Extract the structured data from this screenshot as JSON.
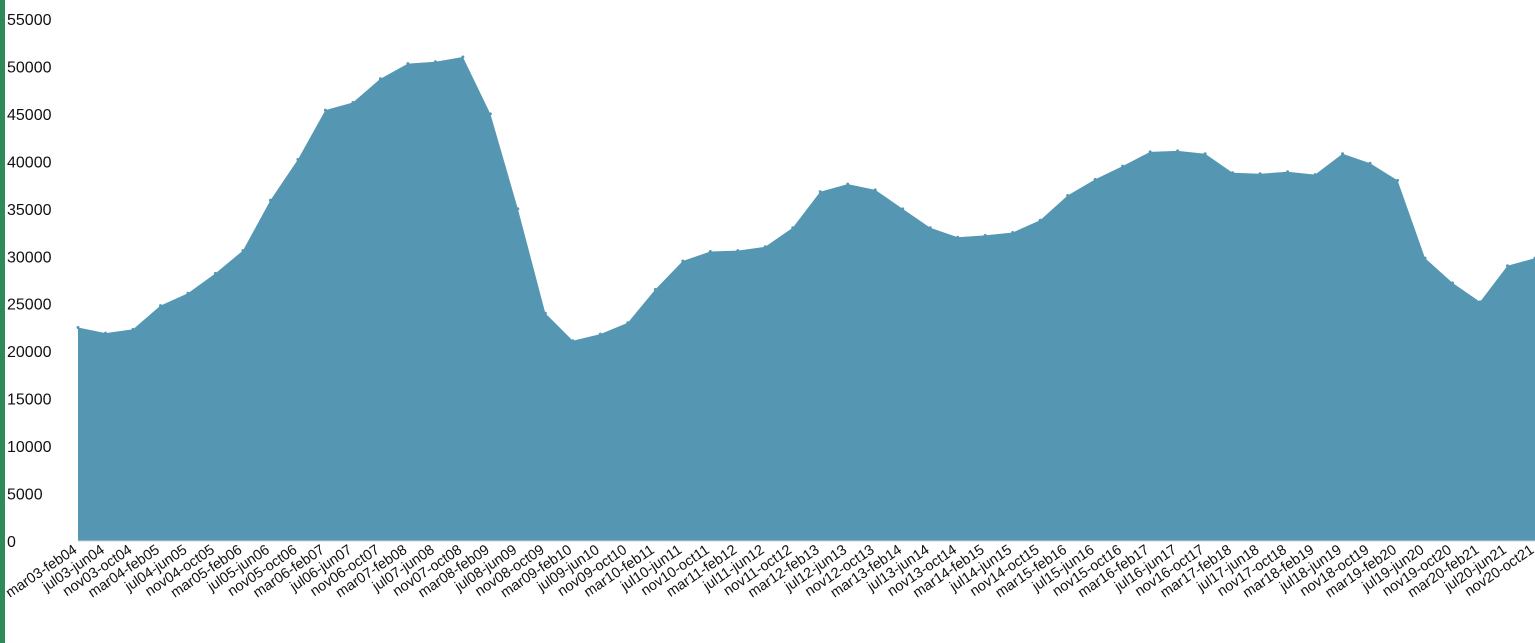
{
  "chart_data": {
    "type": "area",
    "title": "",
    "xlabel": "",
    "ylabel": "",
    "ylim": [
      0,
      55000
    ],
    "yticks": [
      0,
      5000,
      10000,
      15000,
      20000,
      25000,
      30000,
      35000,
      40000,
      45000,
      50000,
      55000
    ],
    "grid": false,
    "legend": "none",
    "fill_color": "#5597b2",
    "accent_color": "#2e8b57",
    "categories": [
      "mar03-feb04",
      "jul03-jun04",
      "nov03-oct04",
      "mar04-feb05",
      "jul04-jun05",
      "nov04-oct05",
      "mar05-feb06",
      "jul05-jun06",
      "nov05-oct06",
      "mar06-feb07",
      "jul06-jun07",
      "nov06-oct07",
      "mar07-feb08",
      "jul07-jun08",
      "nov07-oct08",
      "mar08-feb09",
      "jul08-jun09",
      "nov08-oct09",
      "mar09-feb10",
      "jul09-jun10",
      "nov09-oct10",
      "mar10-feb11",
      "jul10-jun11",
      "nov10-oct11",
      "mar11-feb12",
      "jul11-jun12",
      "nov11-oct12",
      "mar12-feb13",
      "jul12-jun13",
      "nov12-oct13",
      "mar13-feb14",
      "jul13-jun14",
      "nov13-oct14",
      "mar14-feb15",
      "jul14-jun15",
      "nov14-oct15",
      "mar15-feb16",
      "jul15-jun16",
      "nov15-oct16",
      "mar16-feb17",
      "jul16-jun17",
      "nov16-oct17",
      "mar17-feb18",
      "jul17-jun18",
      "nov17-oct18",
      "mar18-feb19",
      "jul18-jun19",
      "nov18-oct19",
      "mar19-feb20",
      "jul19-jun20",
      "nov19-oct20",
      "mar20-feb21",
      "jul20-jun21",
      "nov20-oct21"
    ],
    "series": [
      {
        "values": [
          22500,
          21900,
          22300,
          24800,
          26100,
          28200,
          30600,
          35900,
          40200,
          45400,
          46200,
          48700,
          50300,
          50500,
          51000,
          45000,
          35000,
          24000,
          21100,
          21800,
          23000,
          26500,
          29500,
          30500,
          30600,
          31000,
          33000,
          36800,
          37600,
          37000,
          35000,
          33000,
          32000,
          32200,
          32500,
          33800,
          36400,
          38100,
          39500,
          41000,
          41100,
          40800,
          38800,
          38700,
          38900,
          38600,
          40800,
          39800,
          38000,
          29800,
          27200,
          25200,
          29000,
          29800
        ]
      }
    ]
  }
}
